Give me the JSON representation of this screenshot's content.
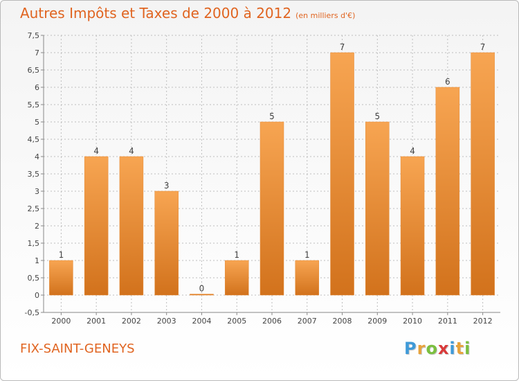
{
  "header": {
    "title": "Autres Impôts et Taxes de 2000 à 2012",
    "unit": "(en milliers d'€)"
  },
  "footer": {
    "commune": "FIX-SAINT-GENEYS",
    "logo_letters": [
      "P",
      "r",
      "o",
      "x",
      "i",
      "t",
      "i"
    ],
    "logo_colors": [
      "#3f9ad8",
      "#e8a33c",
      "#7bbf3f",
      "#d93a3a",
      "#3f9ad8",
      "#e8a33c",
      "#7bbf3f"
    ]
  },
  "colors": {
    "bar_top": "#f7a552",
    "bar_bottom": "#d2721c",
    "bar_edge": "#e58a36",
    "grid": "#bdbdbd",
    "title": "#e06420"
  },
  "chart_data": {
    "type": "bar",
    "title": "Autres Impôts et Taxes de 2000 à 2012",
    "ylabel": "(en milliers d'€)",
    "categories": [
      "2000",
      "2001",
      "2002",
      "2003",
      "2004",
      "2005",
      "2006",
      "2007",
      "2008",
      "2009",
      "2010",
      "2011",
      "2012"
    ],
    "values": [
      1,
      4,
      4,
      3,
      0,
      1,
      5,
      1,
      7,
      5,
      4,
      6,
      7
    ],
    "value_labels": [
      "1",
      "4",
      "4",
      "3",
      "0",
      "1",
      "5",
      "1",
      "7",
      "5",
      "4",
      "6",
      "7"
    ],
    "ylim": [
      -0.5,
      7.5
    ],
    "yticks": [
      -0.5,
      0,
      0.5,
      1,
      1.5,
      2,
      2.5,
      3,
      3.5,
      4,
      4.5,
      5,
      5.5,
      6,
      6.5,
      7,
      7.5
    ],
    "ytick_labels": [
      "-0,5",
      "0",
      "0,5",
      "1",
      "1,5",
      "2",
      "2,5",
      "3",
      "3,5",
      "4",
      "4,5",
      "5",
      "5,5",
      "6",
      "6,5",
      "7",
      "7,5"
    ],
    "grid": true
  }
}
